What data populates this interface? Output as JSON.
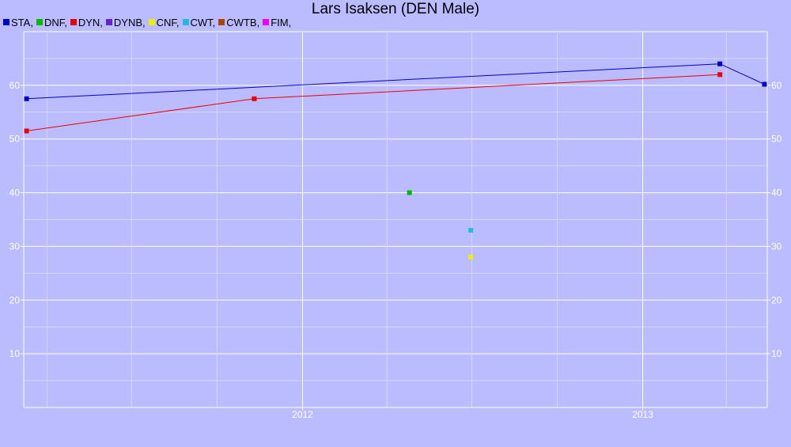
{
  "chart_data": {
    "type": "line",
    "title": "Lars Isaksen (DEN Male)",
    "xlabel": "",
    "ylabel": "",
    "ylim": [
      0,
      70
    ],
    "xlim": [
      "2011-03-07",
      "2013-05-15"
    ],
    "y_ticks": [
      10,
      20,
      30,
      40,
      50,
      60
    ],
    "x_ticks": [
      {
        "label": "2012",
        "date": "2012-01-01"
      },
      {
        "label": "2013",
        "date": "2013-01-01"
      }
    ],
    "grid": true,
    "legend_position": "top-left",
    "series": [
      {
        "name": "STA",
        "color": "#0000cc",
        "points": [
          [
            "2011-03-10",
            57.5
          ],
          [
            "2013-03-25",
            64
          ],
          [
            "2013-05-12",
            60.2
          ]
        ]
      },
      {
        "name": "DNF",
        "color": "#00bb00",
        "points": [
          [
            "2012-04-25",
            40
          ]
        ]
      },
      {
        "name": "DYN",
        "color": "#ee0000",
        "points": [
          [
            "2011-03-10",
            51.5
          ],
          [
            "2011-11-10",
            57.5
          ],
          [
            "2013-03-25",
            62
          ]
        ]
      },
      {
        "name": "DYNB",
        "color": "#6622cc",
        "points": []
      },
      {
        "name": "CNF",
        "color": "#eeee00",
        "points": [
          [
            "2012-06-30",
            28
          ]
        ]
      },
      {
        "name": "CWT",
        "color": "#22bbdd",
        "points": [
          [
            "2012-06-30",
            33
          ]
        ]
      },
      {
        "name": "CWTB",
        "color": "#aa4400",
        "points": []
      },
      {
        "name": "FIM",
        "color": "#ee00ee",
        "points": []
      }
    ]
  }
}
